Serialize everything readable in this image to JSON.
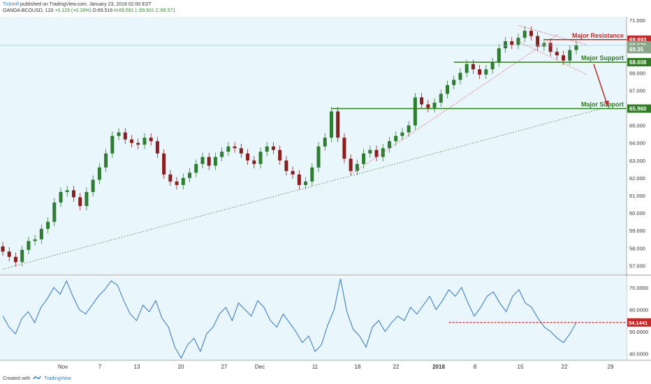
{
  "header": {
    "user": "Tickmill",
    "published": "published on TradingView.com, January 23, 2018 02:00 EST",
    "symbol": "OANDA:BCOUSD, 120",
    "change": "+0.129 (+0.19%)",
    "o": "O:69.516",
    "h": "H:69.591",
    "l": "L:69.501",
    "c": "C:69.571"
  },
  "footer": {
    "created_with": "Created with",
    "brand": "TradingView"
  },
  "colors": {
    "background": "#e9f6fb",
    "up_candle": "#2e7d32",
    "down_candle": "#8b1e1e",
    "rsi_line": "#3f7fc4",
    "support": "#2e7d20",
    "resistance": "#c62828",
    "trend_dotted": "#5a8a5a",
    "channel_dotted": "#e0607a"
  },
  "chart_data": [
    {
      "type": "line",
      "subtype": "candlestick",
      "title": "",
      "x_tick_labels": [
        "Nov",
        "7",
        "13",
        "20",
        "27",
        "Dec",
        "11",
        "18",
        "22",
        "2018",
        "8",
        "15",
        "22",
        "29"
      ],
      "y_tick_labels": [
        "57.000",
        "58.000",
        "59.000",
        "60.000",
        "61.000",
        "62.000",
        "63.000",
        "64.000",
        "65.000",
        "67.000",
        "68.000",
        "71.000"
      ],
      "ylim": [
        56.5,
        71.2
      ],
      "series_close_approx": [
        57.8,
        57.5,
        57.2,
        57.9,
        58.4,
        58.5,
        59.1,
        59.5,
        60.6,
        61.2,
        61.3,
        60.9,
        60.4,
        61.2,
        61.9,
        62.6,
        63.4,
        64.4,
        64.6,
        64.2,
        64.0,
        63.9,
        64.3,
        64.1,
        63.4,
        62.2,
        61.8,
        61.6,
        62.0,
        62.3,
        62.8,
        63.2,
        62.7,
        63.2,
        63.5,
        63.8,
        63.7,
        63.4,
        63.0,
        62.8,
        63.5,
        63.8,
        63.6,
        63.0,
        62.4,
        62.2,
        61.6,
        61.8,
        62.6,
        63.8,
        64.3,
        65.8,
        64.3,
        63.1,
        62.4,
        62.8,
        63.4,
        63.6,
        63.2,
        63.7,
        64.1,
        64.4,
        64.6,
        65.0,
        66.6,
        66.2,
        66.0,
        66.3,
        66.8,
        67.3,
        67.6,
        68.0,
        68.5,
        68.2,
        67.9,
        68.2,
        68.6,
        69.4,
        69.8,
        69.6,
        70.0,
        70.4,
        70.1,
        69.5,
        69.7,
        69.2,
        69.0,
        68.7,
        69.3,
        69.57
      ],
      "price_labels": [
        {
          "value": "69.893",
          "color": "#c62828"
        },
        {
          "value": "69.571",
          "color": "#8aa68a"
        },
        {
          "value": "69.35",
          "color": "#8aa68a"
        },
        {
          "value": "68.608",
          "color": "#2e7d20"
        },
        {
          "value": "65.960",
          "color": "#2e7d20"
        }
      ],
      "horizontal_levels": [
        {
          "label": "Major Resistance",
          "value": 69.893,
          "color": "#c62828"
        },
        {
          "label": "Major Support",
          "value": 68.608,
          "color": "#2e7d20"
        },
        {
          "label": "Major Support",
          "value": 65.96,
          "color": "#2e7d20"
        }
      ],
      "last_price": 69.571
    },
    {
      "type": "line",
      "title": "",
      "series": [
        {
          "values": [
            57,
            52,
            49,
            56,
            59,
            54,
            61,
            65,
            70,
            67,
            73,
            66,
            60,
            58,
            62,
            66,
            69,
            73,
            71,
            64,
            58,
            55,
            62,
            59,
            64,
            56,
            52,
            43,
            38,
            44,
            47,
            41,
            49,
            52,
            58,
            61,
            55,
            63,
            60,
            57,
            64,
            61,
            55,
            52,
            58,
            54,
            50,
            45,
            48,
            41,
            44,
            53,
            60,
            74,
            59,
            51,
            48,
            43,
            52,
            55,
            50,
            54,
            57,
            55,
            61,
            58,
            62,
            66,
            60,
            64,
            69,
            66,
            70,
            63,
            57,
            61,
            66,
            68,
            63,
            59,
            66,
            69,
            63,
            61,
            56,
            52,
            50,
            47,
            45,
            49,
            54.14
          ]
        }
      ],
      "y_tick_labels": [
        "40.0000",
        "50.0000",
        "60.0000",
        "70.0000"
      ],
      "ylim": [
        37,
        75
      ],
      "current_value_label": "54.1441",
      "level": 54.1441
    }
  ]
}
